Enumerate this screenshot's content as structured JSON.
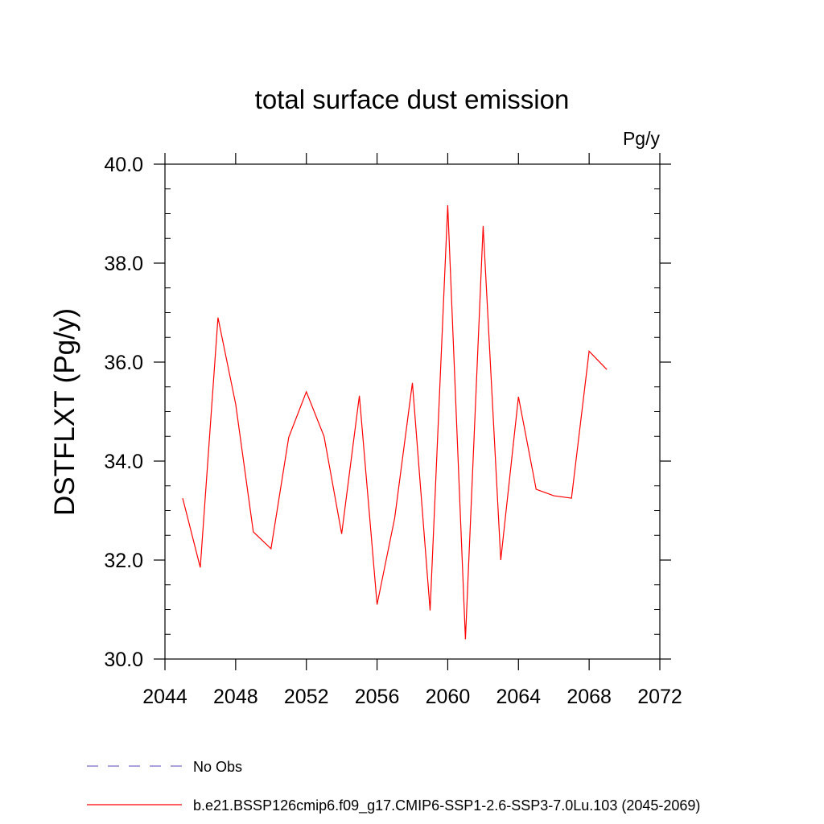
{
  "chart_data": {
    "type": "line",
    "title": "total surface dust emission",
    "units": "Pg/y",
    "ylabel": "DSTFLXT  (Pg/y)",
    "xlabel": "",
    "xlim": [
      2044,
      2072
    ],
    "ylim": [
      30.0,
      40.0
    ],
    "x_ticks": [
      "2044",
      "2048",
      "2052",
      "2056",
      "2060",
      "2064",
      "2068",
      "2072"
    ],
    "y_ticks": [
      "30.0",
      "32.0",
      "34.0",
      "36.0",
      "38.0",
      "40.0"
    ],
    "grid": false,
    "legend_placement": "bottom",
    "series": [
      {
        "name": "b.e21.BSSP126cmip6.f09_g17.CMIP6-SSP1-2.6-SSP3-7.0Lu.103 (2045-2069)",
        "color": "#ff0000",
        "dash": "solid",
        "x": [
          2045,
          2046,
          2047,
          2048,
          2049,
          2050,
          2051,
          2052,
          2053,
          2054,
          2055,
          2056,
          2057,
          2058,
          2059,
          2060,
          2061,
          2062,
          2063,
          2064,
          2065,
          2066,
          2067,
          2068,
          2069
        ],
        "y": [
          33.25,
          31.85,
          36.9,
          35.15,
          32.57,
          32.23,
          34.48,
          35.4,
          34.5,
          32.53,
          35.32,
          31.1,
          32.85,
          35.58,
          30.98,
          39.17,
          30.4,
          38.75,
          32.0,
          35.3,
          33.43,
          33.3,
          33.25,
          36.22,
          35.85
        ]
      }
    ],
    "legend": [
      {
        "label": "No Obs",
        "color": "#7b68cc",
        "dash": "dashed"
      },
      {
        "label": "b.e21.BSSP126cmip6.f09_g17.CMIP6-SSP1-2.6-SSP3-7.0Lu.103 (2045-2069)",
        "color": "#ff0000",
        "dash": "solid"
      }
    ]
  }
}
